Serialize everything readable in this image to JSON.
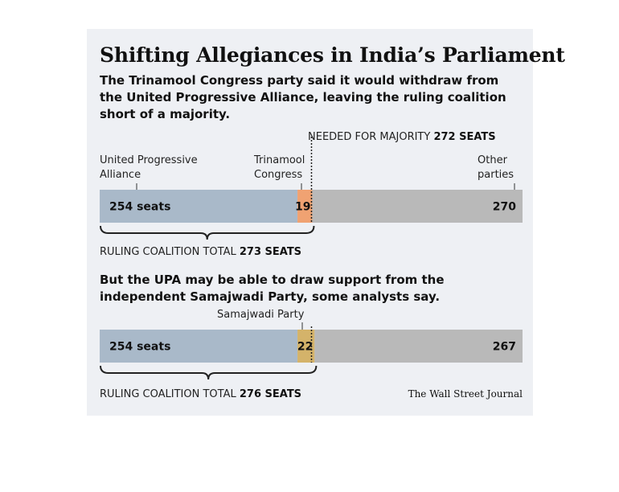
{
  "title": "Shifting Allegiances in India’s Parliament",
  "subtitle": "The Trinamool Congress party said it would withdraw from the United Progressive Alliance, leaving the ruling coalition short of a majority.",
  "majority": {
    "label": "NEEDED FOR MAJORITY",
    "value_text": "272 SEATS",
    "seats": 272
  },
  "labels": {
    "upa_line1": "United Progressive",
    "upa_line2": "Alliance",
    "tmc_line1": "Trinamool",
    "tmc_line2": "Congress",
    "other_line1": "Other",
    "other_line2": "parties",
    "sp": "Samajwadi Party"
  },
  "note": "But the UPA may be able to draw support from the independent Samajwadi Party, some analysts say.",
  "totals": [
    {
      "label": "RULING COALITION TOTAL",
      "value_text": "273 SEATS"
    },
    {
      "label": "RULING COALITION TOTAL",
      "value_text": "276 SEATS"
    }
  ],
  "source": "The Wall Street Journal",
  "colors": {
    "upa": "#a9b9c9",
    "tmc": "#f0a272",
    "sp": "#d4b36a",
    "other": "#b9b9b9",
    "background": "#eef0f4"
  },
  "chart_data": [
    {
      "type": "bar",
      "orientation": "horizontal-stacked",
      "series": [
        {
          "name": "United Progressive Alliance",
          "value": 254,
          "label": "254 seats",
          "color": "#a9b9c9"
        },
        {
          "name": "Trinamool Congress",
          "value": 19,
          "label": "19",
          "color": "#f0a272"
        },
        {
          "name": "Other parties",
          "value": 270,
          "label": "270",
          "color": "#b9b9b9"
        }
      ],
      "majority_line": 272,
      "total": 543
    },
    {
      "type": "bar",
      "orientation": "horizontal-stacked",
      "series": [
        {
          "name": "United Progressive Alliance",
          "value": 254,
          "label": "254 seats",
          "color": "#a9b9c9"
        },
        {
          "name": "Samajwadi Party",
          "value": 22,
          "label": "22",
          "color": "#d4b36a"
        },
        {
          "name": "Other",
          "value": 267,
          "label": "267",
          "color": "#b9b9b9"
        }
      ],
      "majority_line": 272,
      "total": 543
    }
  ]
}
